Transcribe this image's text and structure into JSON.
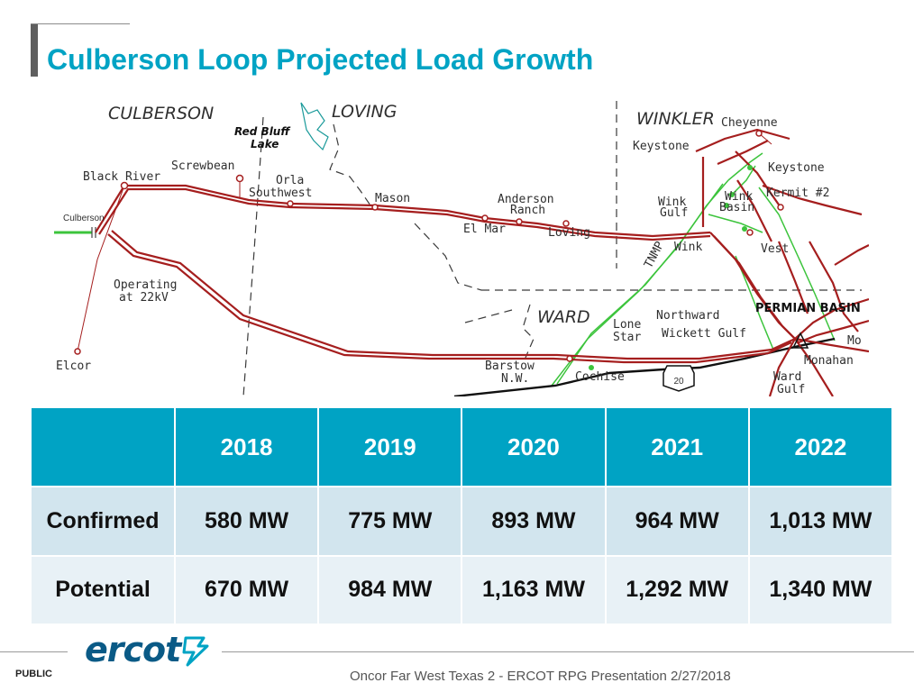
{
  "slide": {
    "title": "Culberson Loop Projected Load Growth"
  },
  "map": {
    "counties": [
      "CULBERSON",
      "LOVING",
      "WINKLER",
      "WARD"
    ],
    "lake": [
      "Red Bluff",
      "Lake"
    ],
    "highway": "20",
    "tnmp": "TNMP",
    "permian": "PERMIAN BASIN",
    "places": {
      "black_river": "Black River",
      "culberson": "Culberson",
      "operating": [
        "Operating",
        "at 22kV"
      ],
      "elcor": "Elcor",
      "screwbean": "Screwbean",
      "orla": [
        "Orla",
        "Southwest"
      ],
      "mason": "Mason",
      "anderson": [
        "Anderson",
        "Ranch"
      ],
      "elmar": "El Mar",
      "loving": "Loving",
      "keystone_left": "Keystone",
      "cheyenne": "Cheyenne",
      "keystone_right": "Keystone",
      "kermit": "Kermit #2",
      "wink_gulf": [
        "Wink",
        "Gulf"
      ],
      "wink_basin": [
        "Wink",
        "Basin"
      ],
      "wink": "Wink",
      "vest": "Vest",
      "northward": "Northward",
      "lone_star": [
        "Lone",
        "Star"
      ],
      "wickett": "Wickett Gulf",
      "barstow": [
        "Barstow",
        "N.W."
      ],
      "cochise": "Cochise",
      "monahans_cut": "Mo",
      "monahan": "Monahan",
      "ward_gulf": [
        "Ward",
        "Gulf"
      ]
    }
  },
  "table": {
    "years": [
      "2018",
      "2019",
      "2020",
      "2021",
      "2022"
    ],
    "rows": [
      {
        "label": "Confirmed",
        "values": [
          "580 MW",
          "775 MW",
          "893 MW",
          "964 MW",
          "1,013 MW"
        ]
      },
      {
        "label": "Potential",
        "values": [
          "670 MW",
          "984 MW",
          "1,163 MW",
          "1,292 MW",
          "1,340 MW"
        ]
      }
    ]
  },
  "footer": {
    "logo": "ercot",
    "classification": "PUBLIC",
    "caption": "Oncor Far West Texas 2 - ERCOT RPG Presentation 2/27/2018"
  },
  "colors": {
    "accent": "#00a3c4",
    "line_red": "#a51e1e",
    "line_green": "#3cc43c",
    "logo_blue": "#0a5a86"
  }
}
